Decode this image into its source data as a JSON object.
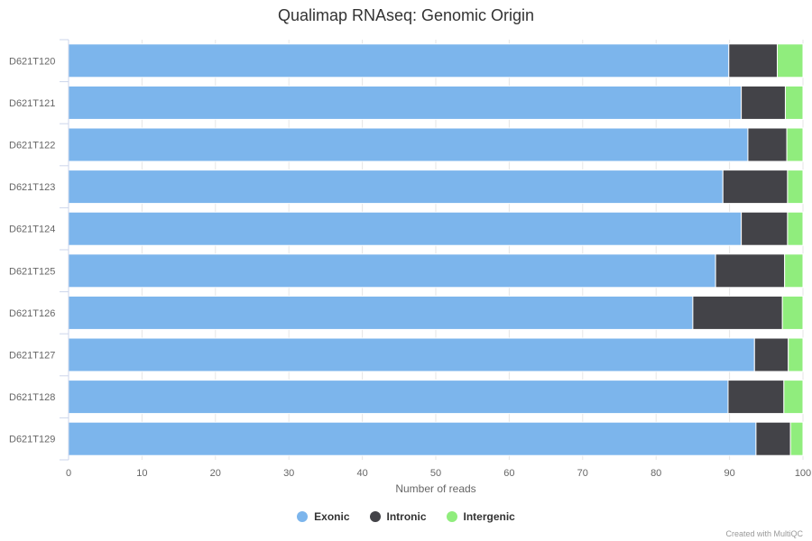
{
  "chart_data": {
    "type": "bar",
    "orientation": "horizontal",
    "stacked": true,
    "title": "Qualimap RNAseq: Genomic Origin",
    "xlabel": "Number of reads",
    "xlim": [
      0,
      100
    ],
    "xticks": [
      "0",
      "10",
      "20",
      "30",
      "40",
      "50",
      "60",
      "70",
      "80",
      "90",
      "100"
    ],
    "categories": [
      "D621T120",
      "D621T121",
      "D621T122",
      "D621T123",
      "D621T124",
      "D621T125",
      "D621T126",
      "D621T127",
      "D621T128",
      "D621T129"
    ],
    "series": [
      {
        "name": "Exonic",
        "color": "#7cb5ec",
        "values": [
          89.9,
          91.6,
          92.5,
          89.1,
          91.6,
          88.1,
          85.0,
          93.4,
          89.8,
          93.6
        ]
      },
      {
        "name": "Intronic",
        "color": "#434348",
        "values": [
          6.6,
          6.0,
          5.3,
          8.8,
          6.3,
          9.4,
          12.2,
          4.6,
          7.6,
          4.7
        ]
      },
      {
        "name": "Intergenic",
        "color": "#90ed7d",
        "values": [
          3.5,
          2.4,
          2.2,
          2.1,
          2.1,
          2.5,
          2.8,
          2.0,
          2.6,
          1.7
        ]
      }
    ],
    "grid": true,
    "legend_position": "bottom"
  },
  "credit": "Created with MultiQC"
}
